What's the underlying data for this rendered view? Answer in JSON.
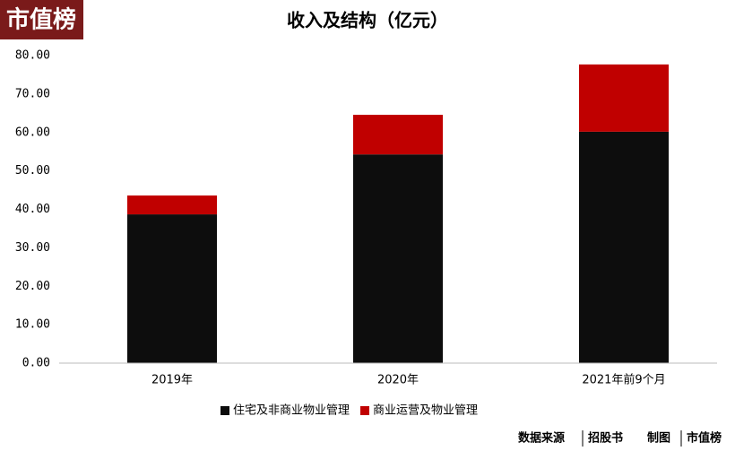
{
  "chart_data": {
    "type": "stacked_bar",
    "title": "收入及结构（亿元）",
    "categories": [
      "2019年",
      "2020年",
      "2021年前9个月"
    ],
    "series": [
      {
        "name": "住宅及非商业物业管理",
        "color": "#0d0d0d",
        "values": [
          38.7,
          54.3,
          60.2
        ]
      },
      {
        "name": "商业运营及物业管理",
        "color": "#c00000",
        "values": [
          4.9,
          10.3,
          17.5
        ]
      }
    ],
    "ylim": [
      0,
      80
    ],
    "yticks": [
      {
        "value": 0,
        "label": "0.00"
      },
      {
        "value": 10,
        "label": "10.00"
      },
      {
        "value": 20,
        "label": "20.00"
      },
      {
        "value": 30,
        "label": "30.00"
      },
      {
        "value": 40,
        "label": "40.00"
      },
      {
        "value": 50,
        "label": "50.00"
      },
      {
        "value": 60,
        "label": "60.00"
      },
      {
        "value": 70,
        "label": "70.00"
      },
      {
        "value": 80,
        "label": "80.00"
      }
    ],
    "grid": false,
    "legend": "bottom"
  },
  "logo": "市值榜",
  "footer": [
    "数据来源",
    "招股书",
    "制图",
    "市值榜"
  ]
}
